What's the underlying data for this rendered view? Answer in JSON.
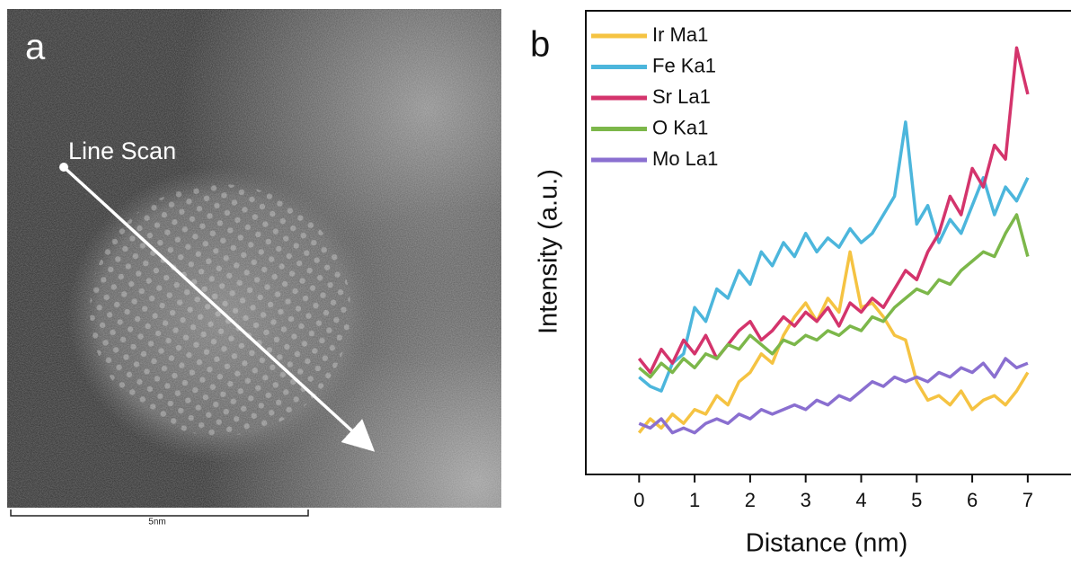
{
  "image_panel": {
    "label": "a",
    "annotation": "Line Scan",
    "scale_bar": "5nm"
  },
  "chart_data": {
    "type": "line",
    "panel_label": "b",
    "x_label": "Distance (nm)",
    "y_label": "Intensity (a.u.)",
    "x": [
      0,
      0.2,
      0.4,
      0.6,
      0.8,
      1.0,
      1.2,
      1.4,
      1.6,
      1.8,
      2.0,
      2.2,
      2.4,
      2.6,
      2.8,
      3.0,
      3.2,
      3.4,
      3.6,
      3.8,
      4.0,
      4.2,
      4.4,
      4.6,
      4.8,
      5.0,
      5.2,
      5.4,
      5.6,
      5.8,
      6.0,
      6.2,
      6.4,
      6.6,
      6.8,
      7.0
    ],
    "series": [
      {
        "name": "Ir Ma1",
        "color": "#f5c342",
        "values": [
          9,
          12,
          10,
          13,
          11,
          14,
          13,
          17,
          15,
          20,
          22,
          26,
          24,
          30,
          34,
          37,
          33,
          38,
          35,
          48,
          36,
          37,
          34,
          30,
          29,
          20,
          16,
          17,
          15,
          18,
          14,
          16,
          17,
          15,
          18,
          22
        ]
      },
      {
        "name": "Fe Ka1",
        "color": "#4cb6dc",
        "values": [
          21,
          19,
          18,
          24,
          26,
          36,
          33,
          40,
          38,
          44,
          41,
          48,
          45,
          50,
          47,
          52,
          48,
          51,
          49,
          53,
          50,
          52,
          56,
          60,
          76,
          54,
          58,
          50,
          55,
          52,
          58,
          64,
          56,
          62,
          59,
          64
        ]
      },
      {
        "name": "Sr La1",
        "color": "#d4346c",
        "values": [
          25,
          22,
          27,
          24,
          29,
          26,
          30,
          25,
          28,
          31,
          33,
          29,
          31,
          34,
          32,
          35,
          33,
          36,
          32,
          37,
          35,
          38,
          36,
          40,
          44,
          42,
          48,
          52,
          60,
          56,
          66,
          62,
          71,
          68,
          92,
          82
        ]
      },
      {
        "name": "O Ka1",
        "color": "#7cb74a",
        "values": [
          23,
          21,
          24,
          22,
          25,
          23,
          26,
          25,
          28,
          27,
          30,
          28,
          26,
          29,
          28,
          30,
          29,
          31,
          30,
          32,
          31,
          34,
          33,
          36,
          38,
          40,
          39,
          42,
          41,
          44,
          46,
          48,
          47,
          52,
          56,
          47
        ]
      },
      {
        "name": "Mo La1",
        "color": "#8a6fd0",
        "values": [
          11,
          10,
          12,
          9,
          10,
          9,
          11,
          12,
          11,
          13,
          12,
          14,
          13,
          14,
          15,
          14,
          16,
          15,
          17,
          16,
          18,
          20,
          19,
          21,
          20,
          21,
          20,
          22,
          21,
          23,
          22,
          24,
          21,
          25,
          23,
          24
        ]
      }
    ],
    "xlim": [
      -0.96,
      7.86
    ],
    "ylim": [
      0,
      100
    ],
    "xticks": [
      0,
      1,
      2,
      3,
      4,
      5,
      6,
      7
    ],
    "legend": "upper left"
  }
}
